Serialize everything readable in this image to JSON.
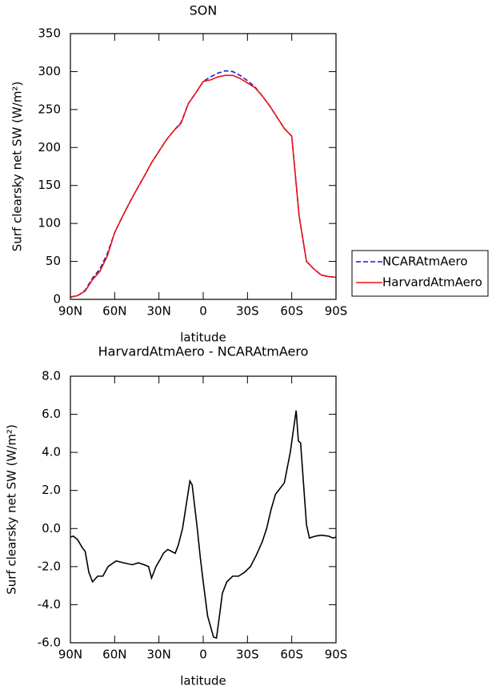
{
  "chart_data": [
    {
      "type": "line",
      "title": "SON",
      "xlabel": "latitude",
      "ylabel": "Surf clearsky net SW (W/m²)",
      "x": [
        90,
        85,
        80,
        75,
        70,
        65,
        60,
        55,
        50,
        45,
        40,
        35,
        30,
        25,
        20,
        15,
        10,
        5,
        0,
        -5,
        -10,
        -15,
        -20,
        -25,
        -30,
        -35,
        -40,
        -45,
        -50,
        -55,
        -60,
        -65,
        -70,
        -75,
        -80,
        -85,
        -90
      ],
      "series": [
        {
          "name": "NCARAtmAero",
          "color": "#1a1acc",
          "dashed": true,
          "values": [
            3,
            5,
            12,
            28,
            40,
            60,
            88,
            108,
            127,
            145,
            162,
            180,
            195,
            210,
            222,
            233,
            258,
            272,
            287,
            293,
            298,
            301,
            300,
            295,
            288,
            280,
            268,
            255,
            240,
            225,
            215,
            110,
            50,
            40,
            32,
            30,
            29
          ]
        },
        {
          "name": "HarvardAtmAero",
          "color": "#ee1111",
          "dashed": false,
          "values": [
            3,
            5,
            11,
            26,
            37,
            57,
            88,
            108,
            127,
            145,
            162,
            180,
            195,
            210,
            222,
            232,
            258,
            272,
            287,
            289,
            293,
            295,
            295,
            291,
            285,
            279,
            268,
            255,
            240,
            225,
            215,
            110,
            50,
            40,
            32,
            30,
            29
          ]
        }
      ],
      "xlim": [
        90,
        -90
      ],
      "xticks": [
        {
          "value": 90,
          "label": "90N"
        },
        {
          "value": 60,
          "label": "60N"
        },
        {
          "value": 30,
          "label": "30N"
        },
        0,
        {
          "value": -30,
          "label": "30S"
        },
        {
          "value": -60,
          "label": "60S"
        },
        {
          "value": -90,
          "label": "90S"
        }
      ],
      "ylim": [
        0,
        350
      ],
      "yticks": [
        0,
        50,
        100,
        150,
        200,
        250,
        300,
        350
      ],
      "legend": "outside-right"
    },
    {
      "type": "line",
      "title": "HarvardAtmAero - NCARAtmAero",
      "xlabel": "latitude",
      "ylabel": "Surf clearsky net SW (W/m²)",
      "x": [
        90,
        88,
        85,
        82,
        80,
        77.5,
        75,
        71.5,
        68,
        64.5,
        59,
        54,
        48,
        44,
        40,
        37,
        35,
        32,
        29,
        27,
        24,
        19,
        17,
        14,
        11,
        9,
        7.5,
        4,
        2,
        0,
        -3,
        -7,
        -9,
        -11,
        -13,
        -16,
        -20,
        -24,
        -28,
        -32,
        -36,
        -40,
        -43,
        -46,
        -49,
        -55,
        -59,
        -63,
        -64.5,
        -66,
        -70,
        -72,
        -76,
        -80,
        -85,
        -88,
        -90
      ],
      "series": [
        {
          "color": "#000000",
          "dashed": false,
          "values": [
            -0.45,
            -0.4,
            -0.6,
            -1.0,
            -1.2,
            -2.3,
            -2.8,
            -2.5,
            -2.5,
            -2.0,
            -1.7,
            -1.8,
            -1.9,
            -1.8,
            -1.9,
            -2.0,
            -2.6,
            -2.0,
            -1.6,
            -1.3,
            -1.1,
            -1.3,
            -0.9,
            0.0,
            1.5,
            2.5,
            2.3,
            0.0,
            -1.5,
            -2.8,
            -4.6,
            -5.7,
            -5.75,
            -4.6,
            -3.4,
            -2.8,
            -2.5,
            -2.5,
            -2.3,
            -2.0,
            -1.4,
            -0.7,
            0.0,
            1.0,
            1.8,
            2.4,
            4.0,
            6.2,
            4.6,
            4.5,
            0.2,
            -0.5,
            -0.4,
            -0.35,
            -0.4,
            -0.5,
            -0.45
          ]
        }
      ],
      "xlim": [
        90,
        -90
      ],
      "xticks": [
        {
          "value": 90,
          "label": "90N"
        },
        {
          "value": 60,
          "label": "60N"
        },
        {
          "value": 30,
          "label": "30N"
        },
        0,
        {
          "value": -30,
          "label": "30S"
        },
        {
          "value": -60,
          "label": "60S"
        },
        {
          "value": -90,
          "label": "90S"
        }
      ],
      "ylim": [
        -6,
        8
      ],
      "yticks": [
        {
          "value": -6,
          "label": "-6.0"
        },
        {
          "value": -4,
          "label": "-4.0"
        },
        {
          "value": -2,
          "label": "-2.0"
        },
        {
          "value": 0,
          "label": "0.0"
        },
        {
          "value": 2,
          "label": "2.0"
        },
        {
          "value": 4,
          "label": "4.0"
        },
        {
          "value": 6,
          "label": "6.0"
        },
        {
          "value": 8,
          "label": "8.0"
        }
      ]
    }
  ]
}
